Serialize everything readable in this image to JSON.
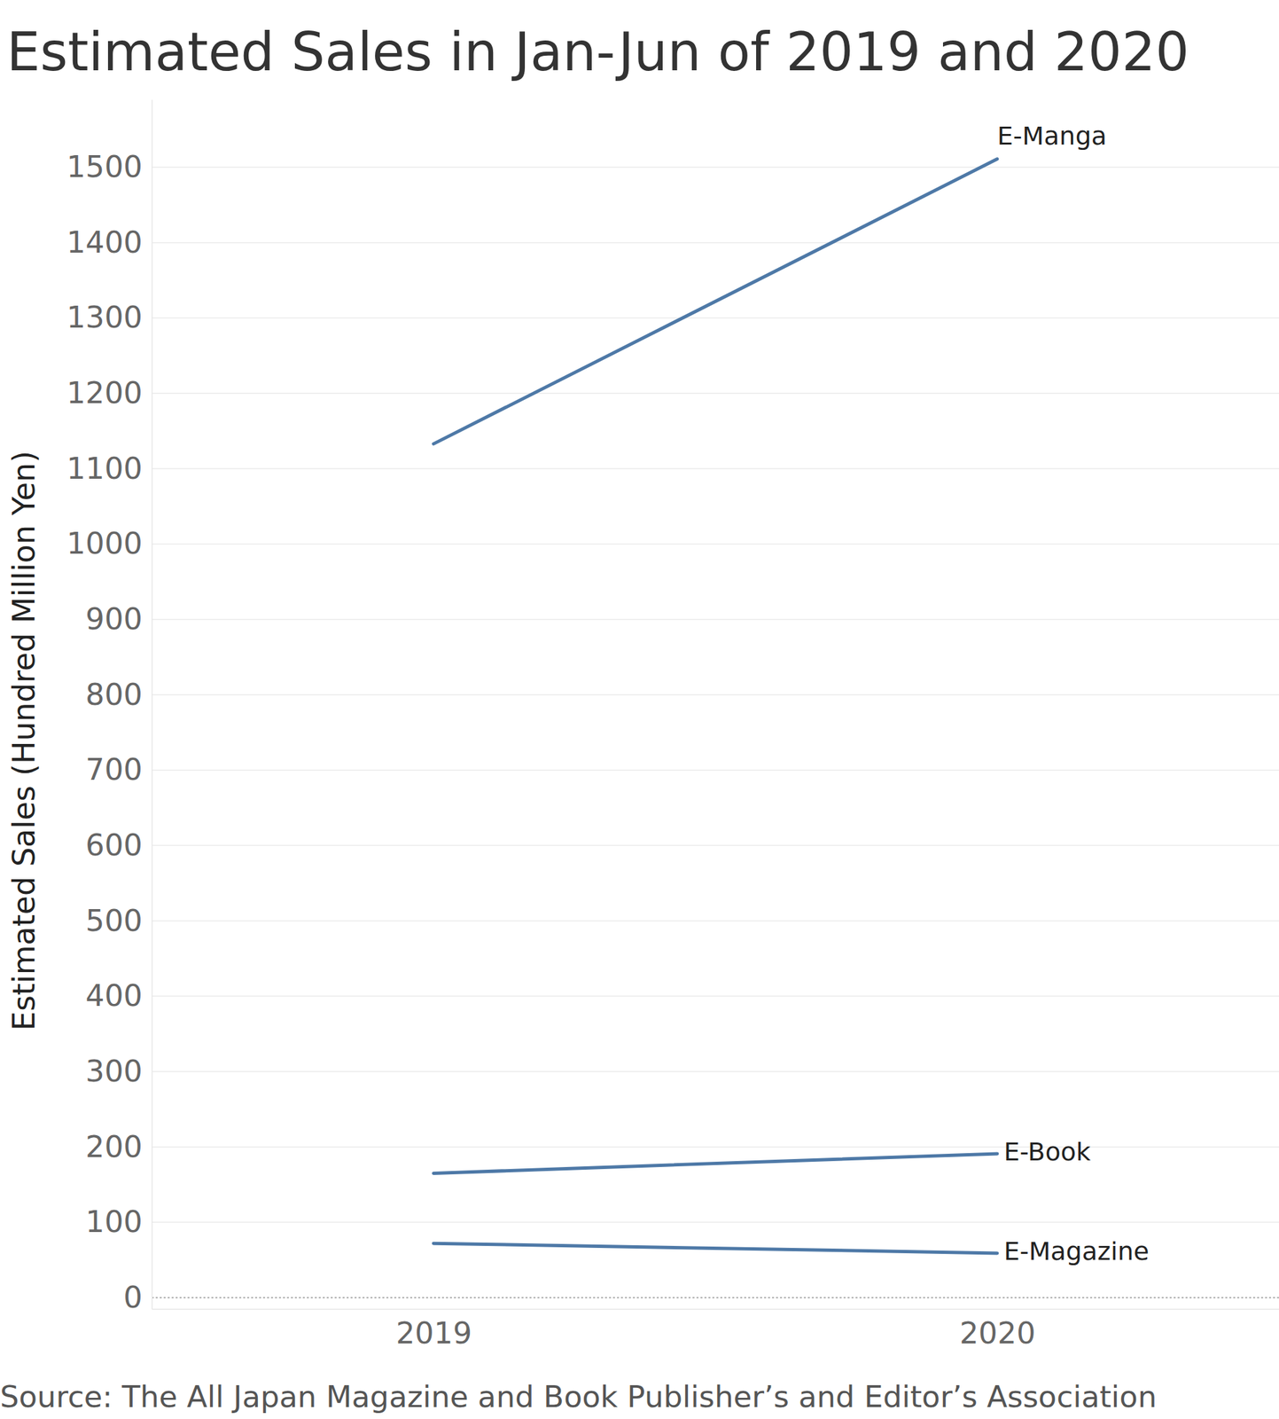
{
  "chart_data": {
    "type": "line",
    "title": "Estimated Sales in Jan-Jun of 2019 and 2020",
    "y_label": "Estimated Sales (Hundred Million Yen)",
    "source": "Source: The All Japan Magazine and Book Publisher’s and Editor’s Association",
    "categories": [
      "2019",
      "2020"
    ],
    "series": [
      {
        "name": "E-Manga",
        "color": "#4e79a7",
        "values": [
          1133,
          1511
        ]
      },
      {
        "name": "E-Book",
        "color": "#4e79a7",
        "values": [
          165,
          191
        ]
      },
      {
        "name": "E-Magazine",
        "color": "#4e79a7",
        "values": [
          72,
          59
        ]
      }
    ],
    "ylim": [
      -15,
      1590
    ],
    "yticks": [
      0,
      100,
      200,
      300,
      400,
      500,
      600,
      700,
      800,
      900,
      1000,
      1100,
      1200,
      1300,
      1400,
      1500
    ],
    "grid": true
  }
}
